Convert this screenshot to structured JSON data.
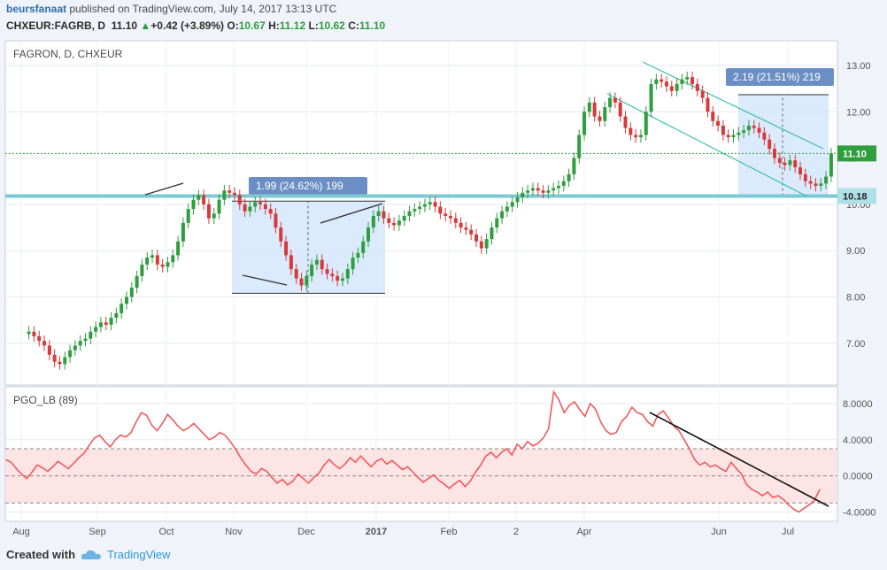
{
  "header": {
    "user": "beursfanaat",
    "published_text": "published on TradingView.com, July 14, 2017 13:13 UTC",
    "symbol_line": "CHXEUR:FAGRB, D",
    "last": "11.10",
    "change": "+0.42 (+3.89%)",
    "o_label": "O:",
    "o": "10.67",
    "h_label": "H:",
    "h": "11.12",
    "l_label": "L:",
    "l": "10.62",
    "c_label": "C:",
    "c": "11.10"
  },
  "footer": {
    "created_with": "Created with",
    "brand": "TradingView"
  },
  "colors": {
    "up": "#2e9e3e",
    "down": "#d63a3a",
    "pgo": "#f05a5a",
    "channel": "#3cbfae",
    "support": "#7cc9d4",
    "box": "#cfe3fb"
  },
  "chart_data": [
    {
      "type": "candlestick",
      "title": "FAGRON, D, CHXEUR",
      "yticks": [
        "13.00",
        "12.00",
        "11.00",
        "10.00",
        "9.00",
        "8.00",
        "7.00"
      ],
      "ylim": [
        6.35,
        13.25
      ],
      "xticks": [
        "Aug",
        "Sep",
        "Oct",
        "Nov",
        "Dec",
        "2017",
        "Feb",
        "2",
        "Apr",
        "Jun",
        "Jul"
      ],
      "last_price_label": "11.10",
      "support_label": "10.18",
      "support_level": 10.18,
      "measure_boxes": [
        {
          "label": "1.99 (24.62%) 199",
          "from": 8.08,
          "to": 10.07
        },
        {
          "label": "2.19 (21.51%) 219",
          "from": 10.18,
          "to": 12.37
        }
      ],
      "closes": [
        7.25,
        7.15,
        7.05,
        6.95,
        6.75,
        6.6,
        6.55,
        6.7,
        6.85,
        6.95,
        7.05,
        7.1,
        7.25,
        7.35,
        7.45,
        7.4,
        7.55,
        7.65,
        7.85,
        8.0,
        8.2,
        8.45,
        8.7,
        8.85,
        8.9,
        8.7,
        8.65,
        8.75,
        8.9,
        9.2,
        9.6,
        9.9,
        10.1,
        10.2,
        10.0,
        9.7,
        9.8,
        10.1,
        10.3,
        10.25,
        10.2,
        10.0,
        9.85,
        9.95,
        10.05,
        10.0,
        9.9,
        9.8,
        9.5,
        9.2,
        8.9,
        8.6,
        8.4,
        8.25,
        8.45,
        8.7,
        8.8,
        8.6,
        8.5,
        8.45,
        8.35,
        8.4,
        8.6,
        8.85,
        8.95,
        9.2,
        9.5,
        9.75,
        9.85,
        9.7,
        9.6,
        9.55,
        9.65,
        9.75,
        9.85,
        9.9,
        9.95,
        10.0,
        10.05,
        9.95,
        9.8,
        9.75,
        9.7,
        9.6,
        9.5,
        9.45,
        9.35,
        9.2,
        9.05,
        9.25,
        9.5,
        9.7,
        9.85,
        9.95,
        10.05,
        10.15,
        10.25,
        10.3,
        10.35,
        10.3,
        10.25,
        10.3,
        10.35,
        10.4,
        10.5,
        10.65,
        11.0,
        11.5,
        12.0,
        12.2,
        11.9,
        11.8,
        12.1,
        12.3,
        12.2,
        11.9,
        11.65,
        11.5,
        11.45,
        11.5,
        12.0,
        12.6,
        12.7,
        12.65,
        12.55,
        12.45,
        12.6,
        12.7,
        12.75,
        12.6,
        12.45,
        12.3,
        12.0,
        11.8,
        11.7,
        11.5,
        11.45,
        11.5,
        11.55,
        11.6,
        11.7,
        11.65,
        11.55,
        11.4,
        11.2,
        11.0,
        10.9,
        10.85,
        10.95,
        10.8,
        10.65,
        10.5,
        10.45,
        10.4,
        10.45,
        10.6,
        11.1
      ],
      "candle_span": [
        32.6,
        938.9
      ]
    },
    {
      "type": "line",
      "title": "PGO_LB (89)",
      "yticks": [
        "8.0000",
        "4.0000",
        "0.0000",
        "-4.0000"
      ],
      "ylim": [
        -5.5,
        10.0
      ],
      "band": [
        -3.0,
        3.0
      ],
      "values": [
        1.8,
        1.5,
        0.8,
        0.2,
        -0.3,
        0.4,
        1.2,
        0.9,
        0.5,
        1.0,
        1.6,
        1.2,
        0.8,
        1.4,
        2.0,
        2.5,
        3.4,
        4.2,
        4.5,
        3.8,
        3.2,
        4.0,
        4.5,
        4.3,
        4.8,
        6.0,
        7.0,
        6.7,
        5.6,
        5.0,
        5.8,
        6.8,
        6.2,
        5.5,
        5.0,
        5.3,
        5.8,
        5.2,
        4.6,
        4.0,
        4.3,
        4.8,
        4.5,
        3.8,
        3.0,
        2.0,
        1.2,
        0.5,
        0.2,
        0.8,
        0.5,
        -0.2,
        -0.8,
        -0.4,
        -1.0,
        -0.6,
        0.2,
        -0.3,
        -0.8,
        -0.2,
        0.3,
        1.2,
        1.8,
        1.2,
        0.8,
        1.3,
        2.0,
        1.5,
        2.2,
        1.6,
        1.0,
        1.6,
        1.9,
        1.3,
        1.7,
        1.2,
        0.7,
        1.0,
        0.4,
        -0.2,
        -0.7,
        -0.3,
        0.1,
        -0.5,
        -0.9,
        -1.4,
        -0.9,
        -0.5,
        -1.2,
        -0.6,
        0.4,
        1.2,
        2.2,
        2.6,
        2.0,
        2.6,
        3.0,
        2.3,
        3.5,
        3.0,
        3.8,
        3.3,
        3.6,
        4.2,
        5.2,
        9.3,
        8.4,
        7.0,
        7.8,
        8.2,
        7.3,
        6.6,
        8.0,
        7.4,
        6.0,
        5.0,
        4.6,
        4.8,
        6.0,
        6.6,
        7.6,
        7.0,
        6.8,
        6.0,
        5.5,
        6.8,
        7.2,
        6.4,
        5.5,
        5.0,
        4.0,
        3.0,
        1.8,
        1.2,
        1.5,
        1.0,
        1.2,
        0.8,
        0.5,
        1.5,
        0.8,
        0.2,
        -1.0,
        -1.5,
        -1.8,
        -2.2,
        -1.8,
        -2.4,
        -2.2,
        -2.6,
        -3.2,
        -3.7,
        -4.0,
        -3.6,
        -3.2,
        -2.7,
        -1.5
      ],
      "line_span": [
        6.6,
        926.1
      ]
    }
  ]
}
